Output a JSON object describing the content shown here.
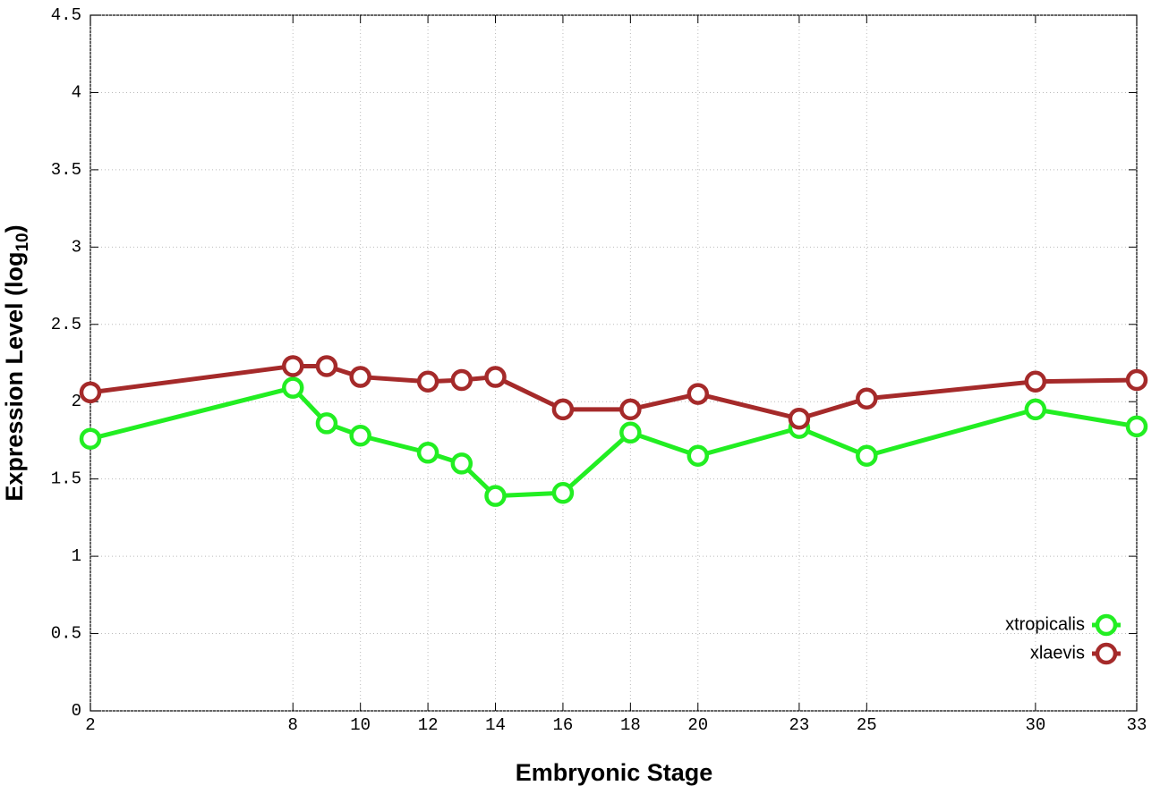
{
  "chart_data": {
    "type": "line",
    "xlabel": "Embryonic Stage",
    "ylabel": [
      "Expression Level (log",
      "10",
      ")"
    ],
    "x": [
      2,
      8,
      9,
      10,
      12,
      13,
      14,
      16,
      18,
      20,
      23,
      25,
      30,
      33
    ],
    "series": [
      {
        "name": "xtropicalis",
        "color": "#22ee22",
        "values": [
          1.76,
          2.09,
          1.86,
          1.78,
          1.67,
          1.6,
          1.39,
          1.41,
          1.8,
          1.65,
          1.83,
          1.65,
          1.95,
          1.84
        ]
      },
      {
        "name": "xlaevis",
        "color": "#a52a2a",
        "values": [
          2.06,
          2.23,
          2.23,
          2.16,
          2.13,
          2.14,
          2.16,
          1.95,
          1.95,
          2.05,
          1.89,
          2.02,
          2.13,
          2.14
        ]
      }
    ],
    "xlim": [
      2,
      33
    ],
    "xticks": [
      2,
      8,
      10,
      12,
      14,
      16,
      18,
      20,
      23,
      25,
      30,
      33
    ],
    "ylim": [
      0,
      4.5
    ],
    "yticks": [
      0,
      0.5,
      1,
      1.5,
      2,
      2.5,
      3,
      3.5,
      4,
      4.5
    ],
    "grid": true,
    "legend": "bottom-right"
  }
}
